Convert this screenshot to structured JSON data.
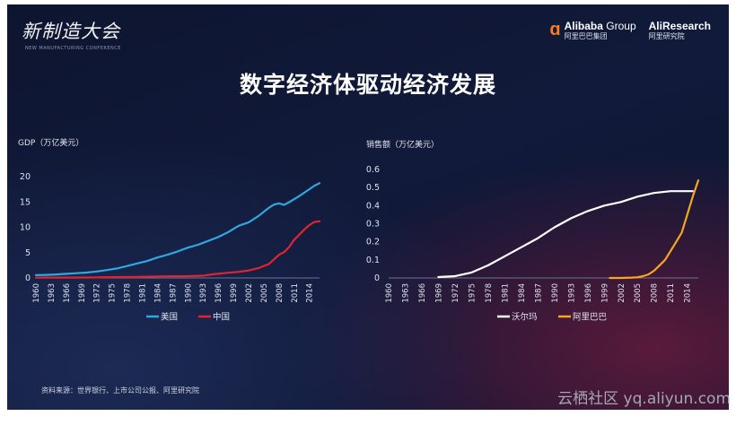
{
  "header": {
    "event_logo": "新制造大会",
    "event_sub": "NEW MANUFACTURING CONFERENCE",
    "brand1_name_bold": "Alibaba",
    "brand1_name_light": " Group",
    "brand1_sub": "阿里巴巴集团",
    "brand2_name": "AliResearch",
    "brand2_sub": "阿里研究院",
    "brand_mark": "ɑ"
  },
  "title": "数字经济体驱动经济发展",
  "source": "资料来源：世界银行、上市公司公报、阿里研究院",
  "watermark": "云栖社区 yq.aliyun.com",
  "colors": {
    "us": "#2fa8e0",
    "cn": "#e32330",
    "walmart": "#ffffff",
    "alibaba": "#f5a623",
    "axis_text": "#dfe3ee",
    "axis_line": "#6b7390"
  },
  "chart_data": [
    {
      "type": "line",
      "ylabel": "GDP（万亿美元）",
      "ylim": [
        0,
        20
      ],
      "yticks": [
        0,
        5,
        10,
        15,
        20
      ],
      "xlim": [
        1960,
        2016
      ],
      "xticks": [
        1960,
        1963,
        1966,
        1969,
        1972,
        1975,
        1978,
        1981,
        1984,
        1987,
        1990,
        1993,
        1996,
        1999,
        2002,
        2005,
        2008,
        2011,
        2014
      ],
      "grid": false,
      "legend": "bottom",
      "series": [
        {
          "name": "美国",
          "color": "#2fa8e0",
          "x": [
            1960,
            1962,
            1964,
            1966,
            1968,
            1970,
            1972,
            1974,
            1976,
            1978,
            1980,
            1982,
            1984,
            1986,
            1988,
            1990,
            1992,
            1994,
            1996,
            1998,
            2000,
            2002,
            2004,
            2006,
            2007,
            2008,
            2009,
            2010,
            2012,
            2014,
            2015,
            2016
          ],
          "y": [
            0.54,
            0.6,
            0.69,
            0.82,
            0.94,
            1.07,
            1.28,
            1.55,
            1.87,
            2.36,
            2.86,
            3.34,
            4.04,
            4.59,
            5.24,
            5.98,
            6.54,
            7.31,
            8.07,
            9.06,
            10.28,
            10.98,
            12.27,
            13.86,
            14.48,
            14.72,
            14.42,
            14.96,
            16.16,
            17.52,
            18.22,
            18.71
          ]
        },
        {
          "name": "中国",
          "color": "#e32330",
          "x": [
            1960,
            1965,
            1970,
            1975,
            1980,
            1985,
            1990,
            1993,
            1995,
            1998,
            2000,
            2002,
            2004,
            2006,
            2008,
            2009,
            2010,
            2011,
            2012,
            2013,
            2014,
            2015,
            2016
          ],
          "y": [
            0.06,
            0.07,
            0.09,
            0.16,
            0.19,
            0.31,
            0.36,
            0.44,
            0.73,
            1.03,
            1.21,
            1.47,
            1.96,
            2.75,
            4.59,
            5.1,
            6.09,
            7.55,
            8.53,
            9.57,
            10.44,
            11.06,
            11.19
          ]
        }
      ]
    },
    {
      "type": "line",
      "ylabel": "销售额（万亿美元）",
      "ylim": [
        0,
        0.6
      ],
      "yticks": [
        0,
        0.1,
        0.2,
        0.3,
        0.4,
        0.5,
        0.6
      ],
      "xlim": [
        1960,
        2016
      ],
      "xticks": [
        1960,
        1963,
        1966,
        1969,
        1972,
        1975,
        1978,
        1981,
        1984,
        1987,
        1990,
        1993,
        1996,
        1999,
        2002,
        2005,
        2008,
        2011,
        2014
      ],
      "grid": false,
      "legend": "bottom",
      "series": [
        {
          "name": "沃尔玛",
          "color": "#ffffff",
          "x": [
            1969,
            1972,
            1975,
            1978,
            1981,
            1984,
            1987,
            1990,
            1993,
            1996,
            1999,
            2002,
            2005,
            2008,
            2011,
            2013,
            2015
          ],
          "y": [
            0.005,
            0.01,
            0.03,
            0.07,
            0.12,
            0.17,
            0.22,
            0.28,
            0.33,
            0.37,
            0.4,
            0.42,
            0.45,
            0.47,
            0.48,
            0.48,
            0.48
          ]
        },
        {
          "name": "阿里巴巴",
          "color": "#f5a623",
          "x": [
            2000,
            2002,
            2004,
            2005,
            2006,
            2007,
            2008,
            2009,
            2010,
            2011,
            2012,
            2013,
            2014,
            2015,
            2016
          ],
          "y": [
            0.0,
            0.0,
            0.002,
            0.004,
            0.01,
            0.02,
            0.04,
            0.07,
            0.1,
            0.15,
            0.2,
            0.25,
            0.35,
            0.45,
            0.54
          ]
        }
      ]
    }
  ]
}
